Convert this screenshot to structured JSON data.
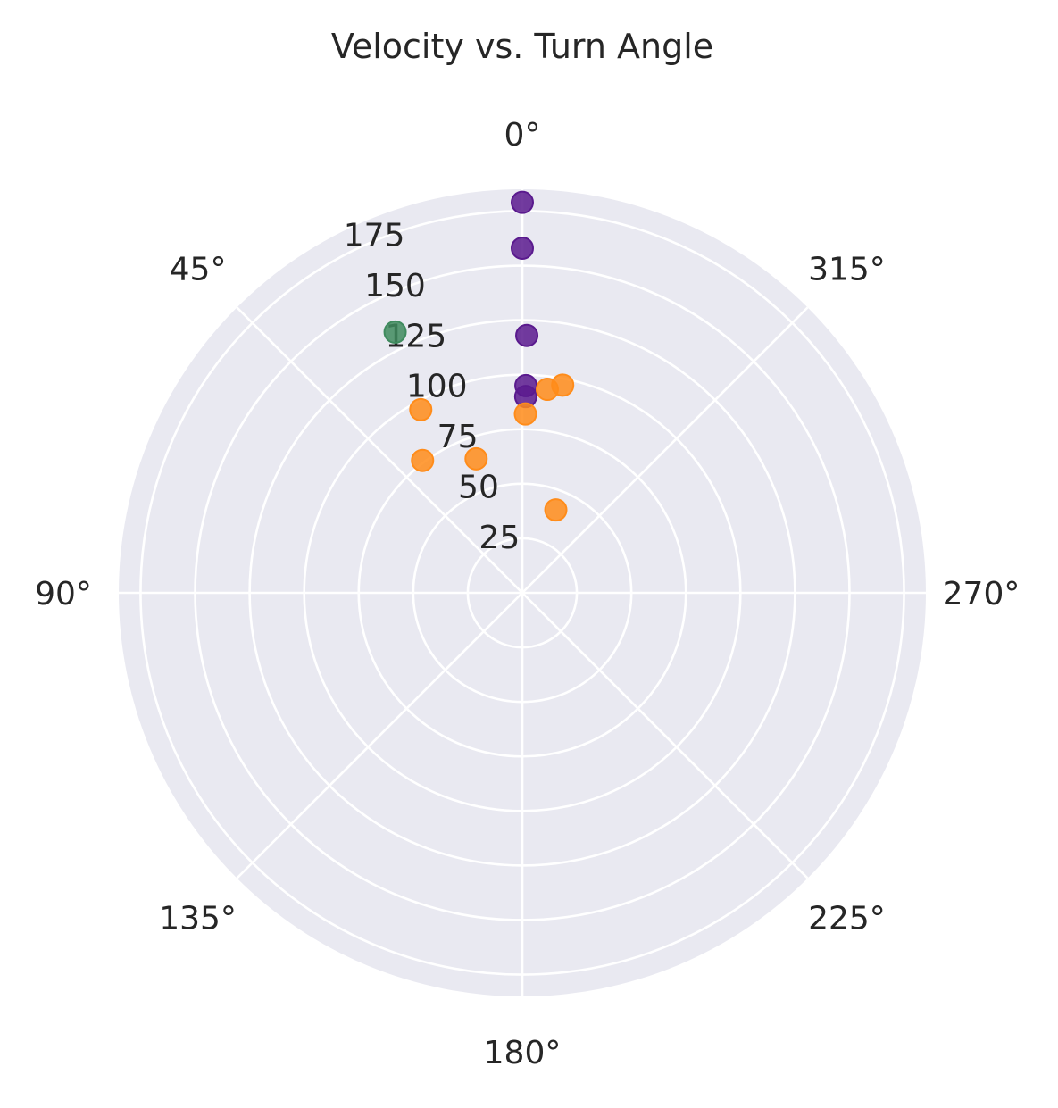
{
  "chart_data": {
    "type": "scatter",
    "projection": "polar",
    "title": "Velocity vs. Turn Angle",
    "theta_zero_location": "top",
    "theta_direction": "counterclockwise",
    "theta_unit": "degrees",
    "theta_ticks": [
      0,
      45,
      90,
      135,
      180,
      225,
      270,
      315
    ],
    "theta_tick_labels": [
      "0°",
      "45°",
      "90°",
      "135°",
      "180°",
      "225°",
      "270°",
      "315°"
    ],
    "r_ticks": [
      25,
      50,
      75,
      100,
      125,
      150,
      175
    ],
    "r_tick_labels": [
      "25",
      "50",
      "75",
      "100",
      "125",
      "150",
      "175"
    ],
    "rlim": [
      0,
      185
    ],
    "grid": true,
    "background_color": "#e9e9f1",
    "grid_color": "#ffffff",
    "legend": "none",
    "series": [
      {
        "color": "#5a1a8e",
        "points": [
          {
            "theta": 0,
            "r": 179
          },
          {
            "theta": 0,
            "r": 158
          },
          {
            "theta": -1,
            "r": 118
          },
          {
            "theta": -1,
            "r": 95
          },
          {
            "theta": -1,
            "r": 90
          }
        ]
      },
      {
        "color": "#3f8b5e",
        "points": [
          {
            "theta": 26,
            "r": 133
          }
        ]
      },
      {
        "color": "#ff8c1a",
        "points": [
          {
            "theta": 29,
            "r": 96
          },
          {
            "theta": -7,
            "r": 94
          },
          {
            "theta": -11,
            "r": 97
          },
          {
            "theta": -1,
            "r": 82
          },
          {
            "theta": 37,
            "r": 76
          },
          {
            "theta": 19,
            "r": 65
          },
          {
            "theta": -22,
            "r": 41
          }
        ]
      }
    ]
  }
}
